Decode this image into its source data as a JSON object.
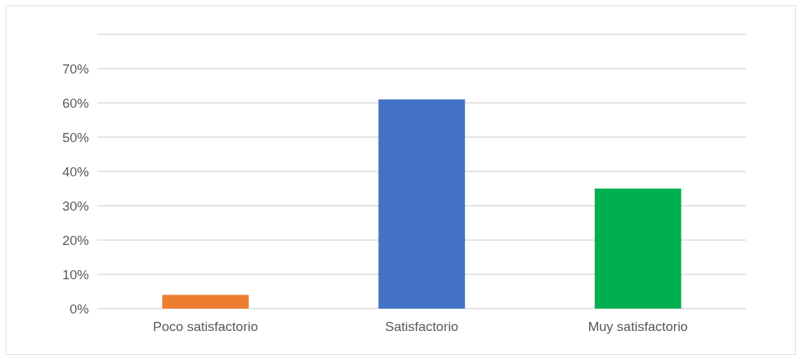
{
  "chart_data": {
    "type": "bar",
    "categories": [
      "Poco satisfactorio",
      "Satisfactorio",
      "Muy satisfactorio"
    ],
    "values": [
      4,
      61,
      35
    ],
    "colors": [
      "#ed7d31",
      "#4472c4",
      "#00b050"
    ],
    "ylim": [
      0,
      80
    ],
    "yticks": [
      {
        "value": 0,
        "label": "0%"
      },
      {
        "value": 10,
        "label": "10%"
      },
      {
        "value": 20,
        "label": "20%"
      },
      {
        "value": 30,
        "label": "30%"
      },
      {
        "value": 40,
        "label": "40%"
      },
      {
        "value": 50,
        "label": "50%"
      },
      {
        "value": 60,
        "label": "60%"
      },
      {
        "value": 70,
        "label": "70%"
      },
      {
        "value": 80,
        "label": null
      }
    ],
    "grid": "y"
  }
}
